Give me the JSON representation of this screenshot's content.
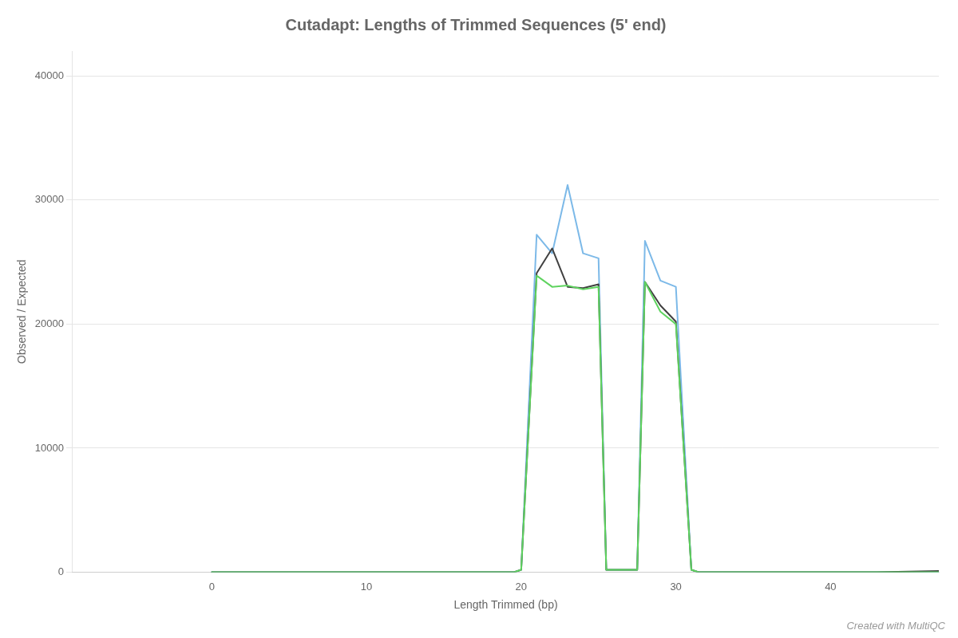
{
  "chart_data": {
    "type": "line",
    "title": "Cutadapt: Lengths of Trimmed Sequences (5' end)",
    "xlabel": "Length Trimmed (bp)",
    "ylabel": "Observed / Expected",
    "xlim": [
      -9,
      47
    ],
    "xticks": [
      0,
      10,
      20,
      30,
      40
    ],
    "ylim": [
      0,
      42000
    ],
    "yticks": [
      0,
      10000,
      20000,
      30000,
      40000
    ],
    "grid": "y",
    "annotations": [
      "Created with MultiQC"
    ],
    "series": [
      {
        "color": "#5fd35f",
        "x": [
          0,
          19.5,
          20,
          21,
          22,
          23,
          24,
          25,
          25.5,
          27.5,
          28,
          29,
          30,
          31,
          31.5,
          47
        ],
        "values": [
          0,
          0,
          200,
          23900,
          23000,
          23100,
          22800,
          23000,
          200,
          200,
          23400,
          21000,
          20000,
          200,
          0,
          0
        ]
      },
      {
        "color": "#404040",
        "x": [
          0,
          19.5,
          20,
          21,
          22,
          23,
          24,
          25,
          25.5,
          27.5,
          28,
          29,
          30,
          31,
          31.5,
          43,
          47
        ],
        "values": [
          0,
          0,
          200,
          24100,
          26100,
          23000,
          22900,
          23200,
          200,
          200,
          23400,
          21500,
          20200,
          200,
          0,
          0,
          100
        ]
      },
      {
        "color": "#7cb9e8",
        "x": [
          0,
          19.5,
          20,
          21,
          22,
          23,
          24,
          25,
          25.5,
          27.5,
          28,
          29,
          30,
          31,
          31.5,
          47
        ],
        "values": [
          0,
          0,
          200,
          27200,
          25700,
          31200,
          25700,
          25300,
          200,
          200,
          26700,
          23500,
          23000,
          200,
          0,
          0
        ]
      }
    ]
  }
}
